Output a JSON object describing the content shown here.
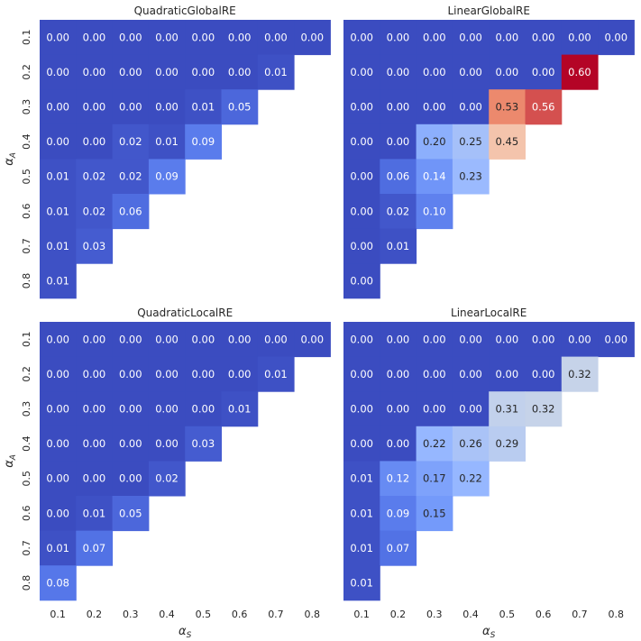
{
  "chart_data": [
    {
      "type": "heatmap",
      "title": "QuadraticGlobalRE",
      "xlabel": "α_S",
      "ylabel": "α_A",
      "x_ticks": [
        "0.1",
        "0.2",
        "0.3",
        "0.4",
        "0.5",
        "0.6",
        "0.7",
        "0.8"
      ],
      "y_ticks": [
        "0.1",
        "0.2",
        "0.3",
        "0.4",
        "0.5",
        "0.6",
        "0.7",
        "0.8"
      ],
      "color_range": [
        0,
        0.6
      ],
      "values": [
        [
          "0.00",
          "0.00",
          "0.00",
          "0.00",
          "0.00",
          "0.00",
          "0.00",
          "0.00"
        ],
        [
          "0.00",
          "0.00",
          "0.00",
          "0.00",
          "0.00",
          "0.00",
          "0.01"
        ],
        [
          "0.00",
          "0.00",
          "0.00",
          "0.00",
          "0.01",
          "0.05"
        ],
        [
          "0.00",
          "0.00",
          "0.02",
          "0.01",
          "0.09"
        ],
        [
          "0.01",
          "0.02",
          "0.02",
          "0.09"
        ],
        [
          "0.01",
          "0.02",
          "0.06"
        ],
        [
          "0.01",
          "0.03"
        ],
        [
          "0.01"
        ]
      ]
    },
    {
      "type": "heatmap",
      "title": "LinearGlobalRE",
      "xlabel": "α_S",
      "ylabel": "α_A",
      "x_ticks": [
        "0.1",
        "0.2",
        "0.3",
        "0.4",
        "0.5",
        "0.6",
        "0.7",
        "0.8"
      ],
      "y_ticks": [
        "0.1",
        "0.2",
        "0.3",
        "0.4",
        "0.5",
        "0.6",
        "0.7",
        "0.8"
      ],
      "color_range": [
        0,
        0.6
      ],
      "values": [
        [
          "0.00",
          "0.00",
          "0.00",
          "0.00",
          "0.00",
          "0.00",
          "0.00",
          "0.00"
        ],
        [
          "0.00",
          "0.00",
          "0.00",
          "0.00",
          "0.00",
          "0.00",
          "0.60"
        ],
        [
          "0.00",
          "0.00",
          "0.00",
          "0.00",
          "0.53",
          "0.56"
        ],
        [
          "0.00",
          "0.00",
          "0.20",
          "0.25",
          "0.45"
        ],
        [
          "0.00",
          "0.06",
          "0.14",
          "0.23"
        ],
        [
          "0.00",
          "0.02",
          "0.10"
        ],
        [
          "0.00",
          "0.01"
        ],
        [
          "0.00"
        ]
      ]
    },
    {
      "type": "heatmap",
      "title": "QuadraticLocalRE",
      "xlabel": "α_S",
      "ylabel": "α_A",
      "x_ticks": [
        "0.1",
        "0.2",
        "0.3",
        "0.4",
        "0.5",
        "0.6",
        "0.7",
        "0.8"
      ],
      "y_ticks": [
        "0.1",
        "0.2",
        "0.3",
        "0.4",
        "0.5",
        "0.6",
        "0.7",
        "0.8"
      ],
      "color_range": [
        0,
        0.6
      ],
      "values": [
        [
          "0.00",
          "0.00",
          "0.00",
          "0.00",
          "0.00",
          "0.00",
          "0.00",
          "0.00"
        ],
        [
          "0.00",
          "0.00",
          "0.00",
          "0.00",
          "0.00",
          "0.00",
          "0.01"
        ],
        [
          "0.00",
          "0.00",
          "0.00",
          "0.00",
          "0.00",
          "0.01"
        ],
        [
          "0.00",
          "0.00",
          "0.00",
          "0.00",
          "0.03"
        ],
        [
          "0.00",
          "0.00",
          "0.00",
          "0.02"
        ],
        [
          "0.00",
          "0.01",
          "0.05"
        ],
        [
          "0.01",
          "0.07"
        ],
        [
          "0.08"
        ]
      ]
    },
    {
      "type": "heatmap",
      "title": "LinearLocalRE",
      "xlabel": "α_S",
      "ylabel": "α_A",
      "x_ticks": [
        "0.1",
        "0.2",
        "0.3",
        "0.4",
        "0.5",
        "0.6",
        "0.7",
        "0.8"
      ],
      "y_ticks": [
        "0.1",
        "0.2",
        "0.3",
        "0.4",
        "0.5",
        "0.6",
        "0.7",
        "0.8"
      ],
      "color_range": [
        0,
        0.6
      ],
      "values": [
        [
          "0.00",
          "0.00",
          "0.00",
          "0.00",
          "0.00",
          "0.00",
          "0.00",
          "0.00"
        ],
        [
          "0.00",
          "0.00",
          "0.00",
          "0.00",
          "0.00",
          "0.00",
          "0.32"
        ],
        [
          "0.00",
          "0.00",
          "0.00",
          "0.00",
          "0.31",
          "0.32"
        ],
        [
          "0.00",
          "0.00",
          "0.22",
          "0.26",
          "0.29"
        ],
        [
          "0.01",
          "0.12",
          "0.17",
          "0.22"
        ],
        [
          "0.01",
          "0.09",
          "0.15"
        ],
        [
          "0.01",
          "0.07"
        ],
        [
          "0.01"
        ]
      ]
    }
  ]
}
